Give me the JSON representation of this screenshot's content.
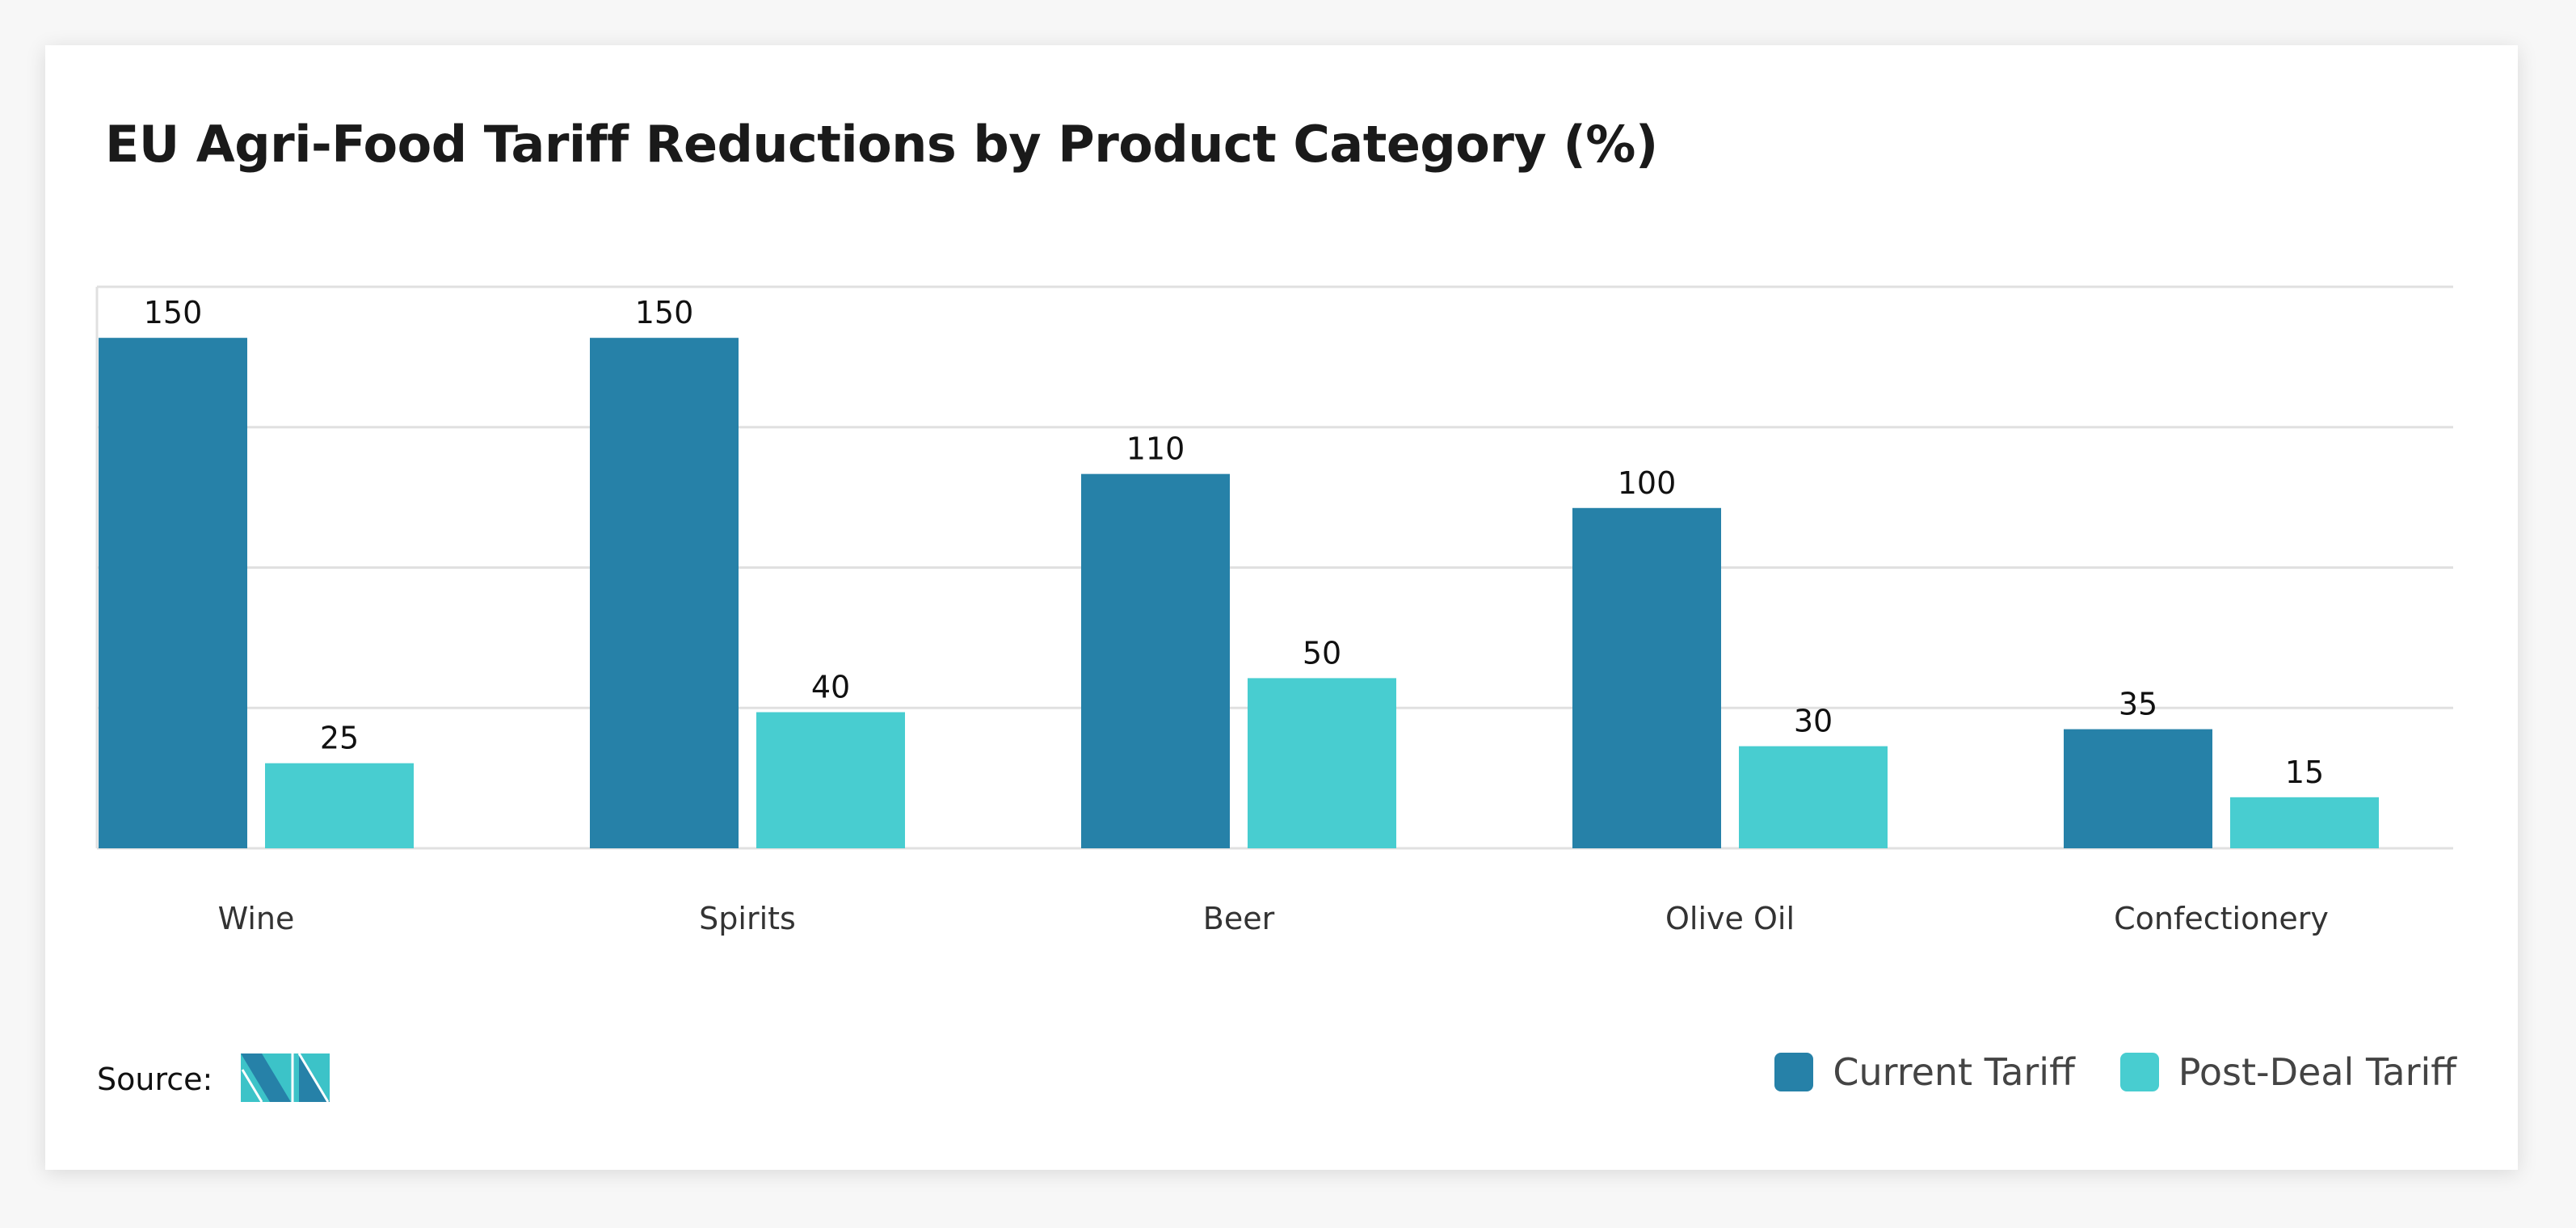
{
  "chart_data": {
    "type": "bar",
    "title": "EU Agri-Food Tariff Reductions by Product Category (%)",
    "categories": [
      "Wine",
      "Spirits",
      "Beer",
      "Olive Oil",
      "Confectionery"
    ],
    "series": [
      {
        "name": "Current Tariff",
        "values": [
          150,
          150,
          110,
          100,
          35
        ],
        "color": "#2681a8"
      },
      {
        "name": "Post-Deal Tariff",
        "values": [
          25,
          40,
          50,
          30,
          15
        ],
        "color": "#48cdd0"
      }
    ],
    "xlabel": "",
    "ylabel": "",
    "ylim": [
      0,
      165
    ],
    "grid": true,
    "legend_placement": "bottom-right"
  },
  "footer": {
    "source_label": "Source:"
  }
}
